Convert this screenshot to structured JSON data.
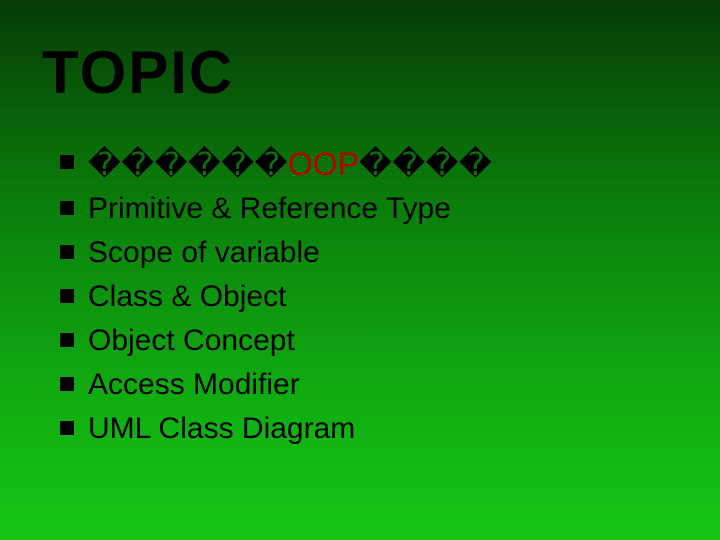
{
  "slide": {
    "title": "TOPIC",
    "title_fontsize": 60,
    "title_font": "Impact",
    "title_color": "#000000",
    "background_gradient": [
      "#063b06",
      "#0a7a0a",
      "#10a810",
      "#14c714"
    ],
    "bullet_color": "#000000",
    "bullet_size": 14,
    "text_fontsize": 30,
    "text_color": "#000000",
    "oop_color": "#b80000",
    "items": [
      {
        "prefix_boxes": "������",
        "highlight": "OOP",
        "suffix_boxes": "����"
      },
      {
        "text": "Primitive & Reference Type"
      },
      {
        "text": "Scope of variable"
      },
      {
        "text": "Class & Object"
      },
      {
        "text": "Object Concept"
      },
      {
        "text": "Access Modifier"
      },
      {
        "text": "UML Class Diagram"
      }
    ]
  }
}
